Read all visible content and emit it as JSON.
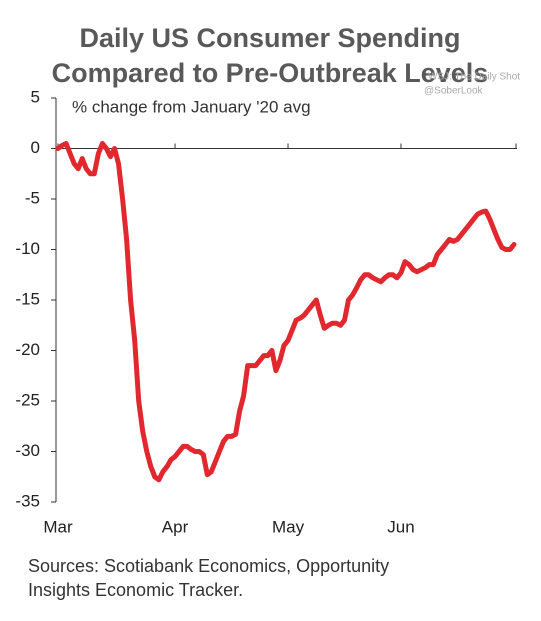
{
  "chart_data": {
    "type": "line",
    "title": [
      "Daily US Consumer Spending",
      "Compared to Pre-Outbreak Levels"
    ],
    "annotation": "% change from January '20 avg",
    "watermark": [
      "WSJ: The Daily Shot",
      "@SoberLook"
    ],
    "sources": [
      "Sources: Scotiabank Economics, Opportunity",
      "Insights Economic Tracker."
    ],
    "categories": [
      "Mar",
      null,
      null,
      null,
      null,
      null,
      null,
      null,
      null,
      null,
      null,
      null,
      null,
      null,
      null,
      null,
      null,
      null,
      null,
      null,
      null,
      null,
      null,
      null,
      null,
      null,
      null,
      null,
      null,
      "Apr",
      null,
      null,
      null,
      null,
      null,
      null,
      null,
      null,
      null,
      null,
      null,
      null,
      null,
      null,
      null,
      null,
      null,
      null,
      null,
      null,
      null,
      null,
      null,
      null,
      null,
      null,
      null,
      "May",
      null,
      null,
      null,
      null,
      null,
      null,
      null,
      null,
      null,
      null,
      null,
      null,
      null,
      null,
      null,
      null,
      null,
      null,
      null,
      null,
      null,
      null,
      null,
      null,
      null,
      null,
      null,
      "Jun",
      null,
      null,
      null,
      null,
      null,
      null,
      null,
      null,
      null,
      null,
      null,
      null,
      null,
      null,
      null,
      null,
      null,
      null,
      null,
      null,
      null,
      null,
      null,
      null,
      null,
      null,
      null,
      null
    ],
    "values": [
      0,
      0.3,
      0.5,
      -0.5,
      -1.5,
      -2,
      -1,
      -2,
      -2.5,
      -2.5,
      -0.5,
      0.5,
      0,
      -0.8,
      0,
      -1.5,
      -5,
      -9,
      -15,
      -19,
      -25,
      -28,
      -30,
      -31.5,
      -32.5,
      -32.8,
      -32,
      -31.5,
      -30.8,
      -30.5,
      -30,
      -29.5,
      -29.5,
      -29.8,
      -30,
      -30,
      -30.3,
      -32.3,
      -32,
      -31,
      -30,
      -29,
      -28.5,
      -28.5,
      -28.3,
      -26,
      -24.5,
      -21.5,
      -21.5,
      -21.5,
      -21,
      -20.5,
      -20.5,
      -20,
      -22,
      -21,
      -19.5,
      -19,
      -18,
      -17,
      -16.8,
      -16.5,
      -16,
      -15.5,
      -15,
      -16.5,
      -17.8,
      -17.5,
      -17.3,
      -17.3,
      -17.5,
      -17,
      -15,
      -14.5,
      -13.8,
      -13,
      -12.5,
      -12.5,
      -12.8,
      -13,
      -13.2,
      -12.8,
      -12.5,
      -12.5,
      -12.8,
      -12.3,
      -11.2,
      -11.5,
      -12,
      -12.2,
      -12,
      -11.8,
      -11.5,
      -11.5,
      -10.5,
      -10,
      -9.5,
      -9,
      -9.2,
      -9,
      -8.5,
      -8,
      -7.5,
      -7,
      -6.5,
      -6.3,
      -6.2,
      -7,
      -8,
      -9,
      -9.8,
      -10,
      -10,
      -9.5
    ],
    "color": "#e0282e",
    "ylim": [
      -35,
      5
    ],
    "yticks": [
      5,
      0,
      -5,
      -10,
      -15,
      -20,
      -25,
      -30,
      -35
    ]
  }
}
